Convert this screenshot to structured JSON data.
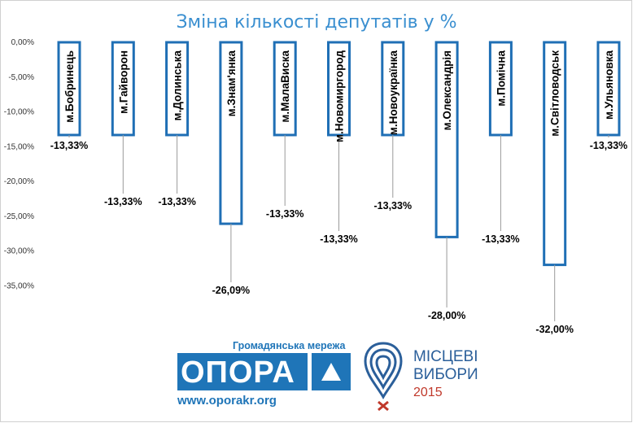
{
  "chart_data": {
    "type": "bar",
    "title": "Зміна кількості депутатів у %",
    "categories": [
      "м.Бобринець",
      "м.Гайворон",
      "м.Долинська",
      "м.Знам'янка",
      "м.МалаВиска",
      "м.Новомиргород",
      "м.Новоукраїнка",
      "м.Олександрія",
      "м.Помічна",
      "м.Світловодськ",
      "м.Ульяновка"
    ],
    "values": [
      -13.33,
      -13.33,
      -13.33,
      -26.09,
      -13.33,
      -13.33,
      -13.33,
      -28.0,
      -13.33,
      -32.0,
      -13.33
    ],
    "data_labels": [
      "-13,33%",
      "-13,33%",
      "-13,33%",
      "-26,09%",
      "-13,33%",
      "-13,33%",
      "-13,33%",
      "-28,00%",
      "-13,33%",
      "-32,00%",
      "-13,33%"
    ],
    "y_ticks": [
      "0,00%",
      "-5,00%",
      "-10,00%",
      "-15,00%",
      "-20,00%",
      "-25,00%",
      "-30,00%",
      "-35,00%"
    ],
    "y_tick_values": [
      0,
      -5,
      -10,
      -15,
      -20,
      -25,
      -30,
      -35
    ],
    "ylim": [
      -35,
      0
    ],
    "grid": false,
    "bar_color": "#1f6fb5",
    "title_color": "#3a8fd0",
    "xlabel": "",
    "ylabel": ""
  },
  "logo": {
    "network": "Громадянська мережа",
    "opora": "ОПОРА",
    "site": "www.oporakr.org",
    "local_line1": "МІСЦЕВІ",
    "local_line2": "ВИБОРИ",
    "year": "2015",
    "brand_color": "#1f75b8",
    "year_color": "#c0392b"
  }
}
